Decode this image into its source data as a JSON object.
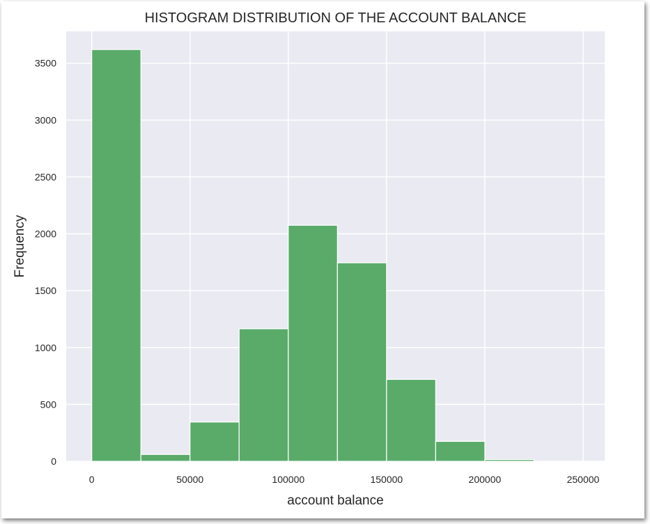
{
  "chart_data": {
    "type": "bar",
    "title": "HISTOGRAM DISTRIBUTION OF THE ACCOUNT BALANCE",
    "xlabel": "account balance",
    "ylabel": "Frequency",
    "bins": [
      [
        0,
        25000
      ],
      [
        25000,
        50000
      ],
      [
        50000,
        75000
      ],
      [
        75000,
        100000
      ],
      [
        100000,
        125000
      ],
      [
        125000,
        150000
      ],
      [
        150000,
        175000
      ],
      [
        175000,
        200000
      ],
      [
        200000,
        225000
      ],
      [
        225000,
        250000
      ]
    ],
    "values": [
      3620,
      60,
      345,
      1165,
      2075,
      1745,
      720,
      175,
      15,
      0
    ],
    "xlim": [
      -13000,
      261000
    ],
    "ylim": [
      0,
      3780
    ],
    "xticks": [
      0,
      50000,
      100000,
      150000,
      200000,
      250000
    ],
    "xtick_labels": [
      "0",
      "50000",
      "100000",
      "150000",
      "200000",
      "250000"
    ],
    "yticks": [
      0,
      500,
      1000,
      1500,
      2000,
      2500,
      3000,
      3500
    ],
    "ytick_labels": [
      "0",
      "500",
      "1000",
      "1500",
      "2000",
      "2500",
      "3000",
      "3500"
    ],
    "grid": true,
    "colors": {
      "bar": "#5aab6a",
      "plot_background": "#eaeaf2",
      "grid": "#ffffff"
    }
  }
}
